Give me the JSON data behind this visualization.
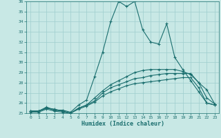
{
  "xlabel": "Humidex (Indice chaleur)",
  "background_color": "#c8e8e5",
  "grid_color": "#9ecece",
  "line_color": "#1a6e6e",
  "xlim": [
    0,
    23
  ],
  "ylim": [
    25,
    36
  ],
  "xticks": [
    0,
    1,
    2,
    3,
    4,
    5,
    6,
    7,
    8,
    9,
    10,
    11,
    12,
    13,
    14,
    15,
    16,
    17,
    18,
    19,
    20,
    21,
    22,
    23
  ],
  "yticks": [
    25,
    26,
    27,
    28,
    29,
    30,
    31,
    32,
    33,
    34,
    35,
    36
  ],
  "series": [
    [
      25.2,
      25.2,
      25.6,
      25.3,
      25.3,
      25.1,
      25.8,
      26.3,
      28.6,
      31.0,
      34.0,
      36.0,
      35.5,
      36.0,
      33.2,
      32.0,
      31.8,
      33.8,
      30.5,
      29.3,
      28.2,
      27.1,
      26.0,
      25.8
    ],
    [
      25.2,
      25.2,
      25.5,
      25.3,
      25.2,
      25.0,
      25.5,
      25.8,
      26.2,
      27.0,
      27.5,
      27.8,
      28.1,
      28.4,
      28.5,
      28.7,
      28.8,
      28.9,
      28.9,
      28.9,
      28.9,
      28.0,
      26.5,
      25.9
    ],
    [
      25.2,
      25.2,
      25.5,
      25.4,
      25.2,
      25.0,
      25.5,
      25.8,
      26.5,
      27.2,
      27.8,
      28.2,
      28.6,
      29.0,
      29.2,
      29.3,
      29.3,
      29.3,
      29.3,
      29.1,
      28.8,
      28.0,
      27.3,
      25.9
    ],
    [
      25.1,
      25.1,
      25.4,
      25.2,
      25.1,
      25.0,
      25.4,
      25.7,
      26.1,
      26.7,
      27.1,
      27.4,
      27.7,
      27.9,
      28.0,
      28.1,
      28.2,
      28.3,
      28.4,
      28.5,
      28.5,
      27.5,
      26.0,
      25.8
    ]
  ]
}
